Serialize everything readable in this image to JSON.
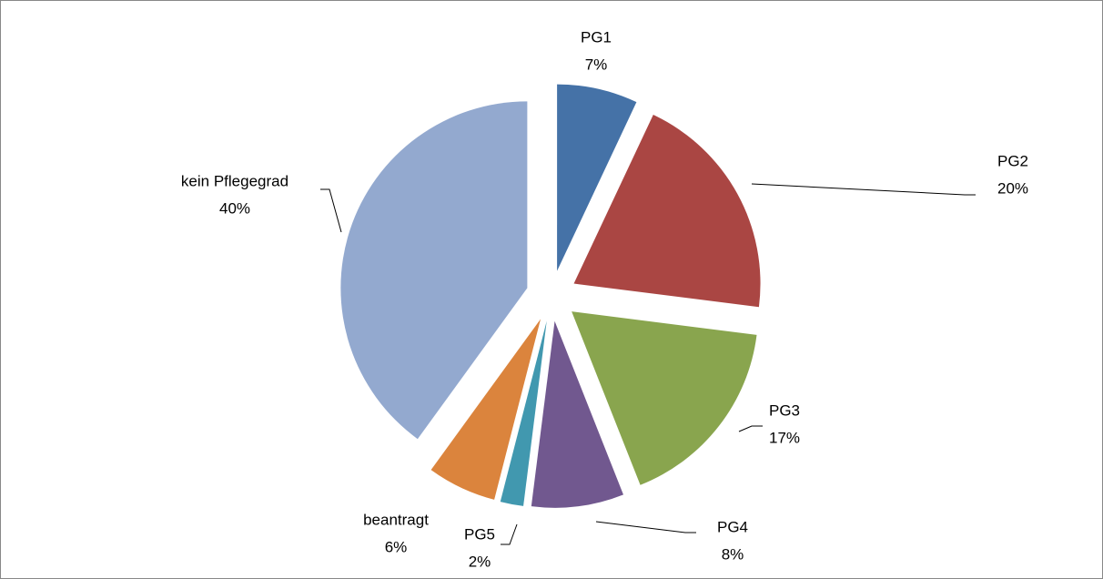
{
  "chart_data": {
    "type": "pie",
    "categories": [
      "PG1",
      "PG2",
      "PG3",
      "PG4",
      "PG5",
      "beantragt",
      "kein Pflegegrad"
    ],
    "values": [
      7,
      20,
      17,
      8,
      2,
      6,
      40
    ],
    "value_labels": [
      "7%",
      "20%",
      "17%",
      "8%",
      "2%",
      "6%",
      "40%"
    ],
    "colors": [
      "#4572a7",
      "#aa4643",
      "#89a54e",
      "#71588f",
      "#4198af",
      "#db843d",
      "#93a9cf"
    ]
  }
}
